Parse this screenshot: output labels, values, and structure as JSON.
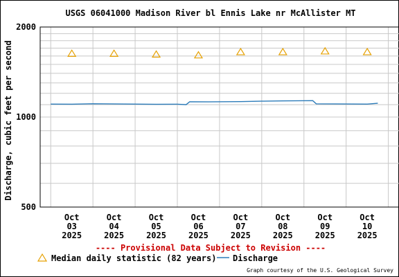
{
  "chart_data": {
    "type": "line",
    "title": "USGS 06041000 Madison River bl Ennis Lake nr McAllister MT",
    "ylabel": "Discharge, cubic feet per second",
    "y_scale": "log",
    "ylim": [
      500,
      2000
    ],
    "y_ticks": [
      {
        "value": 500,
        "label": "500"
      },
      {
        "value": 1000,
        "label": "1000"
      },
      {
        "value": 2000,
        "label": "2000"
      }
    ],
    "x_ticks": [
      {
        "month": "Oct",
        "day": "03",
        "year": "2025"
      },
      {
        "month": "Oct",
        "day": "04",
        "year": "2025"
      },
      {
        "month": "Oct",
        "day": "05",
        "year": "2025"
      },
      {
        "month": "Oct",
        "day": "06",
        "year": "2025"
      },
      {
        "month": "Oct",
        "day": "07",
        "year": "2025"
      },
      {
        "month": "Oct",
        "day": "08",
        "year": "2025"
      },
      {
        "month": "Oct",
        "day": "09",
        "year": "2025"
      },
      {
        "month": "Oct",
        "day": "10",
        "year": "2025"
      }
    ],
    "series": [
      {
        "name": "Median daily statistic (82 years)",
        "style": "triangle",
        "color": "#e6a000",
        "points": [
          {
            "x": "2025-10-03 12:00",
            "y": 1630
          },
          {
            "x": "2025-10-04 12:00",
            "y": 1630
          },
          {
            "x": "2025-10-05 12:00",
            "y": 1620
          },
          {
            "x": "2025-10-06 12:00",
            "y": 1610
          },
          {
            "x": "2025-10-07 12:00",
            "y": 1650
          },
          {
            "x": "2025-10-08 12:00",
            "y": 1650
          },
          {
            "x": "2025-10-09 12:00",
            "y": 1660
          },
          {
            "x": "2025-10-10 12:00",
            "y": 1650
          }
        ]
      },
      {
        "name": "Discharge",
        "style": "line",
        "color": "#2b7bb9",
        "points": [
          {
            "x": "2025-10-03 00:00",
            "y": 1105
          },
          {
            "x": "2025-10-03 12:00",
            "y": 1104
          },
          {
            "x": "2025-10-04 00:00",
            "y": 1108
          },
          {
            "x": "2025-10-04 12:00",
            "y": 1106
          },
          {
            "x": "2025-10-05 00:00",
            "y": 1105
          },
          {
            "x": "2025-10-05 12:00",
            "y": 1103
          },
          {
            "x": "2025-10-06 00:00",
            "y": 1104
          },
          {
            "x": "2025-10-06 05:00",
            "y": 1100
          },
          {
            "x": "2025-10-06 07:00",
            "y": 1125
          },
          {
            "x": "2025-10-06 18:00",
            "y": 1124
          },
          {
            "x": "2025-10-07 12:00",
            "y": 1126
          },
          {
            "x": "2025-10-08 00:00",
            "y": 1130
          },
          {
            "x": "2025-10-08 12:00",
            "y": 1132
          },
          {
            "x": "2025-10-09 00:00",
            "y": 1134
          },
          {
            "x": "2025-10-09 05:00",
            "y": 1135
          },
          {
            "x": "2025-10-09 07:00",
            "y": 1107
          },
          {
            "x": "2025-10-09 18:00",
            "y": 1106
          },
          {
            "x": "2025-10-10 12:00",
            "y": 1105
          },
          {
            "x": "2025-10-10 18:00",
            "y": 1112
          }
        ]
      }
    ],
    "grid": true,
    "legend": "bottom"
  },
  "notice": "---- Provisional Data Subject to Revision ----",
  "credit": "Graph courtesy of the U.S. Geological Survey",
  "colors": {
    "notice": "#cc0000",
    "grid": "#c8c8c8",
    "triangle": "#e6a000",
    "line": "#2b7bb9"
  }
}
